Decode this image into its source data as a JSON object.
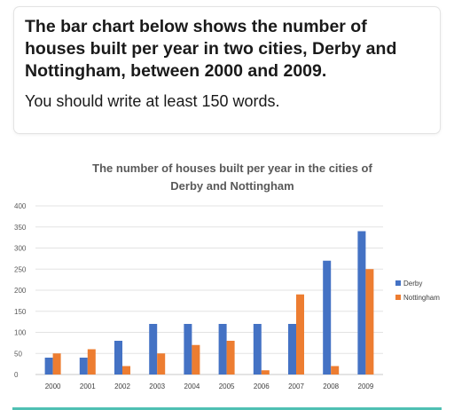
{
  "prompt": {
    "title": "The bar chart below shows the number of houses built per year in two cities, Derby and Nottingham, between 2000 and 2009.",
    "instruction": "You should write at least 150 words."
  },
  "chart_data": {
    "type": "bar",
    "title_line1": "The number of houses built per year in the cities of",
    "title_line2": "Derby and Nottingham",
    "categories": [
      "2000",
      "2001",
      "2002",
      "2003",
      "2004",
      "2005",
      "2006",
      "2007",
      "2008",
      "2009"
    ],
    "series": [
      {
        "name": "Derby",
        "color": "#4472c4",
        "values": [
          40,
          40,
          80,
          120,
          120,
          120,
          120,
          120,
          270,
          340
        ]
      },
      {
        "name": "Nottingham",
        "color": "#ed7d31",
        "values": [
          50,
          60,
          20,
          50,
          70,
          80,
          10,
          190,
          20,
          250
        ]
      }
    ],
    "ylim": [
      0,
      400
    ],
    "yticks": [
      0,
      50,
      100,
      150,
      200,
      250,
      300,
      350,
      400
    ],
    "grid": true,
    "legend_position": "right"
  }
}
